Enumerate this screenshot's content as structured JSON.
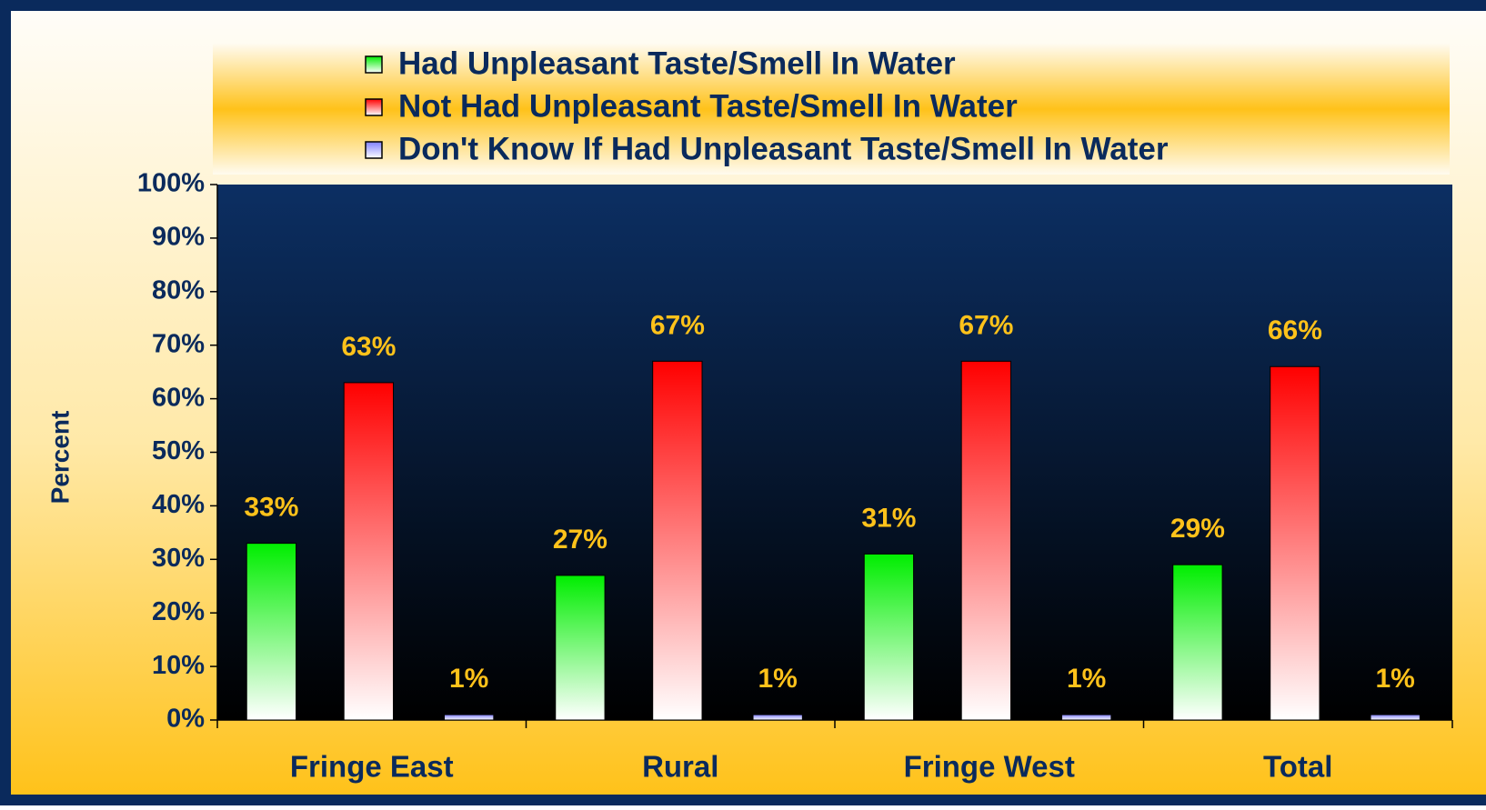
{
  "chart_data": {
    "type": "bar",
    "categories": [
      "Fringe East",
      "Rural",
      "Fringe West",
      "Total"
    ],
    "series": [
      {
        "name": "Had Unpleasant Taste/Smell In Water",
        "color": "#00ee00",
        "values": [
          33,
          27,
          31,
          29
        ],
        "value_labels": [
          "33%",
          "27%",
          "31%",
          "29%"
        ]
      },
      {
        "name": "Not Had Unpleasant Taste/Smell In Water",
        "color": "#ff0000",
        "values": [
          63,
          67,
          67,
          66
        ],
        "value_labels": [
          "63%",
          "67%",
          "67%",
          "66%"
        ]
      },
      {
        "name": "Don't Know If Had Unpleasant Taste/Smell In Water",
        "color": "#8080ff",
        "values": [
          1,
          1,
          1,
          1
        ],
        "value_labels": [
          "1%",
          "1%",
          "1%",
          "1%"
        ]
      }
    ],
    "y_label": "Percent",
    "ylim": [
      0,
      100
    ],
    "yticks": [
      {
        "value": 0,
        "label": "0%"
      },
      {
        "value": 10,
        "label": "10%"
      },
      {
        "value": 20,
        "label": "20%"
      },
      {
        "value": 30,
        "label": "30%"
      },
      {
        "value": 40,
        "label": "40%"
      },
      {
        "value": 50,
        "label": "50%"
      },
      {
        "value": 60,
        "label": "60%"
      },
      {
        "value": 70,
        "label": "70%"
      },
      {
        "value": 80,
        "label": "80%"
      },
      {
        "value": 90,
        "label": "90%"
      },
      {
        "value": 100,
        "label": "100%"
      }
    ],
    "legend": "top"
  }
}
